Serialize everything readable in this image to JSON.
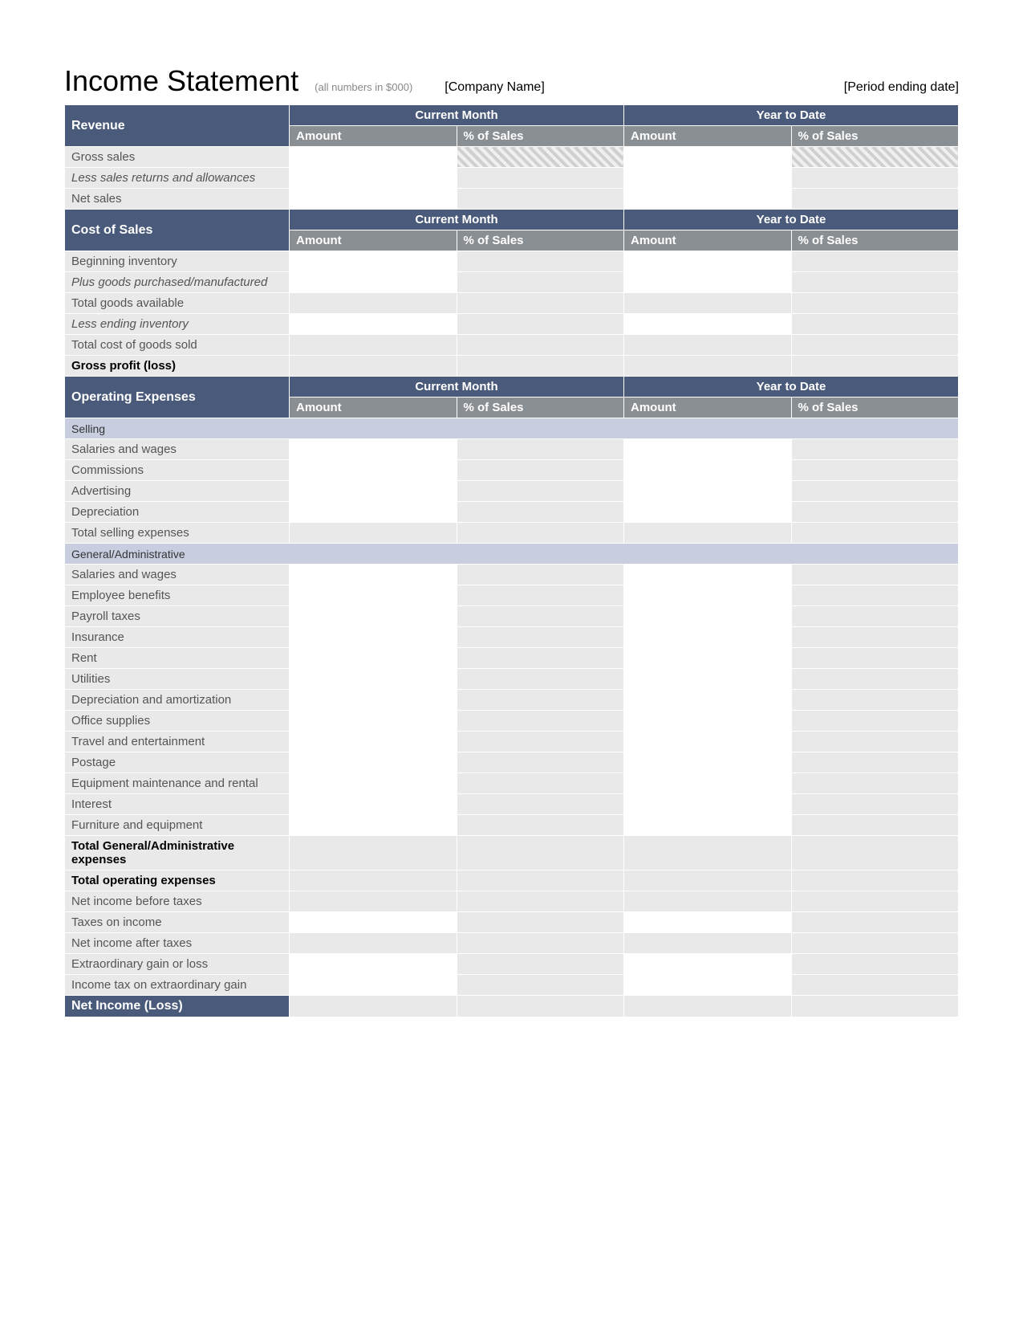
{
  "header": {
    "title": "Income Statement",
    "subtitle": "(all numbers in $000)",
    "company": "[Company Name]",
    "period": "[Period ending date]"
  },
  "columns": {
    "group1": "Current Month",
    "group2": "Year to Date",
    "amount": "Amount",
    "pct": "% of Sales"
  },
  "sections": [
    {
      "title": "Revenue",
      "rows": [
        {
          "label": "Gross sales",
          "style": "normal",
          "cells": [
            "amt",
            "hatch",
            "amt",
            "hatch"
          ]
        },
        {
          "label": "Less sales returns and allowances",
          "style": "italic",
          "cells": [
            "amt",
            "pct",
            "amt",
            "pct"
          ]
        },
        {
          "label": "Net sales",
          "style": "normal",
          "cells": [
            "amt",
            "pct",
            "amt",
            "pct"
          ]
        }
      ]
    },
    {
      "title": "Cost of Sales",
      "rows": [
        {
          "label": "Beginning inventory",
          "style": "normal",
          "cells": [
            "amt",
            "pct",
            "amt",
            "pct"
          ]
        },
        {
          "label": "Plus goods purchased/manufactured",
          "style": "italic",
          "cells": [
            "amt",
            "pct",
            "amt",
            "pct"
          ]
        },
        {
          "label": "Total goods available",
          "style": "normal",
          "cells": [
            "pct",
            "pct",
            "pct",
            "pct"
          ]
        },
        {
          "label": "Less ending inventory",
          "style": "italic",
          "cells": [
            "amt",
            "pct",
            "amt",
            "pct"
          ]
        },
        {
          "label": "Total cost of goods sold",
          "style": "normal",
          "cells": [
            "pct",
            "pct",
            "pct",
            "pct"
          ]
        },
        {
          "label": "Gross profit (loss)",
          "style": "bold",
          "cells": [
            "pct",
            "pct",
            "pct",
            "pct"
          ]
        }
      ]
    },
    {
      "title": "Operating Expenses",
      "subgroups": [
        {
          "title": "Selling",
          "rows": [
            {
              "label": "Salaries and wages",
              "style": "normal",
              "cells": [
                "amt",
                "pct",
                "amt",
                "pct"
              ]
            },
            {
              "label": "Commissions",
              "style": "normal",
              "cells": [
                "amt",
                "pct",
                "amt",
                "pct"
              ]
            },
            {
              "label": "Advertising",
              "style": "normal",
              "cells": [
                "amt",
                "pct",
                "amt",
                "pct"
              ]
            },
            {
              "label": "Depreciation",
              "style": "normal",
              "cells": [
                "amt",
                "pct",
                "amt",
                "pct"
              ]
            },
            {
              "label": "Total selling expenses",
              "style": "normal",
              "cells": [
                "pct",
                "pct",
                "pct",
                "pct"
              ]
            }
          ]
        },
        {
          "title": "General/Administrative",
          "rows": [
            {
              "label": "Salaries and wages",
              "style": "normal",
              "cells": [
                "amt",
                "pct",
                "amt",
                "pct"
              ]
            },
            {
              "label": "Employee benefits",
              "style": "normal",
              "cells": [
                "amt",
                "pct",
                "amt",
                "pct"
              ]
            },
            {
              "label": "Payroll taxes",
              "style": "normal",
              "cells": [
                "amt",
                "pct",
                "amt",
                "pct"
              ]
            },
            {
              "label": "Insurance",
              "style": "normal",
              "cells": [
                "amt",
                "pct",
                "amt",
                "pct"
              ]
            },
            {
              "label": "Rent",
              "style": "normal",
              "cells": [
                "amt",
                "pct",
                "amt",
                "pct"
              ]
            },
            {
              "label": "Utilities",
              "style": "normal",
              "cells": [
                "amt",
                "pct",
                "amt",
                "pct"
              ]
            },
            {
              "label": "Depreciation and amortization",
              "style": "normal",
              "cells": [
                "amt",
                "pct",
                "amt",
                "pct"
              ]
            },
            {
              "label": "Office supplies",
              "style": "normal",
              "cells": [
                "amt",
                "pct",
                "amt",
                "pct"
              ]
            },
            {
              "label": "Travel and entertainment",
              "style": "normal",
              "cells": [
                "amt",
                "pct",
                "amt",
                "pct"
              ]
            },
            {
              "label": "Postage",
              "style": "normal",
              "cells": [
                "amt",
                "pct",
                "amt",
                "pct"
              ]
            },
            {
              "label": "Equipment maintenance and rental",
              "style": "normal",
              "cells": [
                "amt",
                "pct",
                "amt",
                "pct"
              ]
            },
            {
              "label": "Interest",
              "style": "normal",
              "cells": [
                "amt",
                "pct",
                "amt",
                "pct"
              ]
            },
            {
              "label": "Furniture and equipment",
              "style": "normal",
              "cells": [
                "amt",
                "pct",
                "amt",
                "pct"
              ]
            },
            {
              "label": "Total General/Administrative expenses",
              "style": "bold",
              "cells": [
                "pct",
                "pct",
                "pct",
                "pct"
              ]
            },
            {
              "label": "Total operating expenses",
              "style": "bold",
              "cells": [
                "pct",
                "pct",
                "pct",
                "pct"
              ]
            },
            {
              "label": "Net income before taxes",
              "style": "normal",
              "cells": [
                "pct",
                "pct",
                "pct",
                "pct"
              ]
            },
            {
              "label": "Taxes on income",
              "style": "normal",
              "cells": [
                "amt",
                "pct",
                "amt",
                "pct"
              ]
            },
            {
              "label": "Net income after taxes",
              "style": "normal",
              "cells": [
                "pct",
                "pct",
                "pct",
                "pct"
              ]
            },
            {
              "label": "Extraordinary gain or loss",
              "style": "normal",
              "cells": [
                "amt",
                "pct",
                "amt",
                "pct"
              ]
            },
            {
              "label": "Income tax on extraordinary gain",
              "style": "normal",
              "cells": [
                "amt",
                "pct",
                "amt",
                "pct"
              ]
            }
          ]
        }
      ]
    }
  ],
  "net_row": {
    "label": "Net Income (Loss)"
  },
  "colors": {
    "section_header_bg": "#4a5a7a",
    "col_header_bg": "#8a8f94",
    "row_label_bg": "#e9e9e9",
    "subgroup_bg": "#c8cee0",
    "text_muted": "#555555"
  }
}
